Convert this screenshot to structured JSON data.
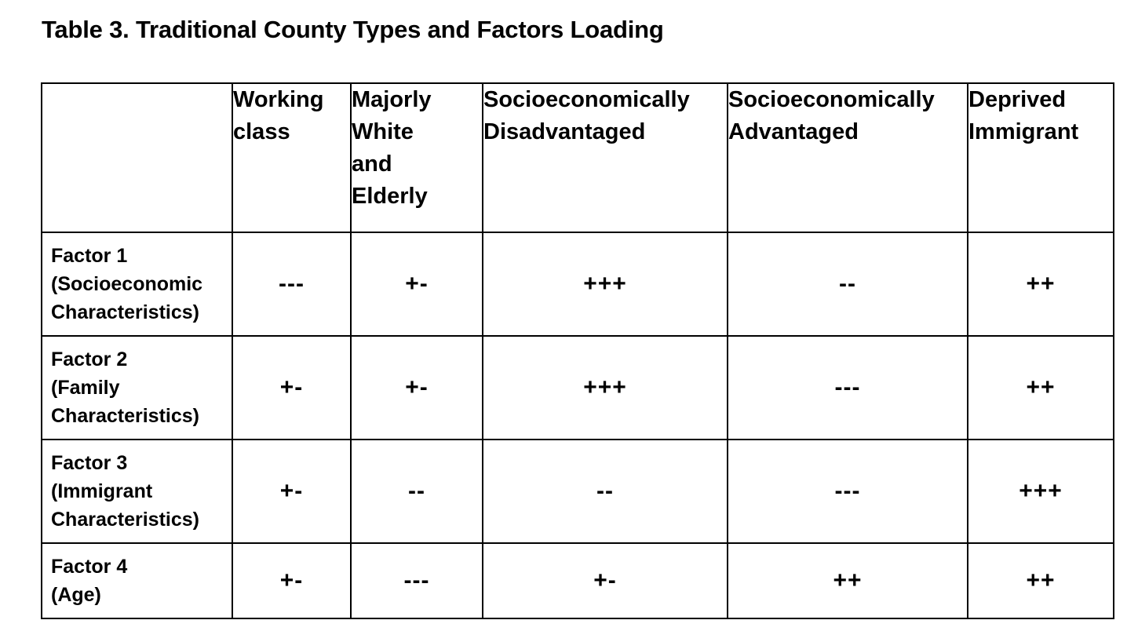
{
  "table_title": "Table 3. Traditional County Types and Factors Loading",
  "header": {
    "corner": "",
    "columns": [
      [
        "Working",
        "class"
      ],
      [
        "Majorly",
        "White",
        "and",
        "Elderly"
      ],
      [
        "Socioeconomically",
        "Disadvantaged"
      ],
      [
        "Socioeconomically",
        "Advantaged"
      ],
      [
        "Deprived",
        "Immigrant"
      ]
    ]
  },
  "rows": [
    {
      "label": [
        "Factor 1",
        "(Socioeconomic",
        "Characteristics)"
      ],
      "values": [
        "---",
        "+-",
        "+++",
        "--",
        "++"
      ]
    },
    {
      "label": [
        "Factor 2",
        "(Family",
        "Characteristics)"
      ],
      "values": [
        "+-",
        "+-",
        "+++",
        "---",
        "++"
      ]
    },
    {
      "label": [
        "Factor 3",
        "(Immigrant",
        "Characteristics)"
      ],
      "values": [
        "+-",
        "--",
        "--",
        "---",
        "+++"
      ]
    },
    {
      "label": [
        "Factor 4",
        "(Age)"
      ],
      "values": [
        "+-",
        "---",
        "+-",
        "++",
        "++"
      ]
    }
  ]
}
